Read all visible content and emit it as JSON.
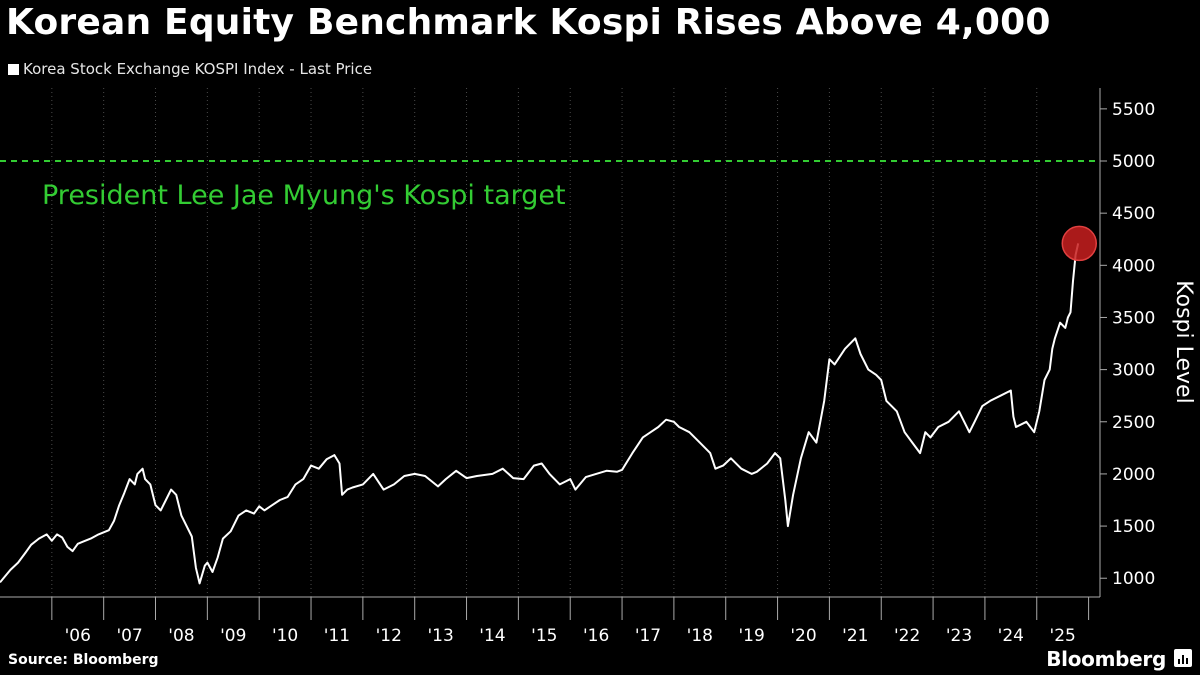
{
  "title": "Korean Equity Benchmark Kospi Rises Above 4,000",
  "legend": "Korea Stock Exchange KOSPI Index - Last Price",
  "source": "Source: Bloomberg",
  "brand": "Bloomberg",
  "colors": {
    "background": "#000000",
    "series": "#ffffff",
    "target": "#33cc33",
    "highlight": "#c81e1e"
  },
  "chart_data": {
    "type": "line",
    "title": "Korean Equity Benchmark Kospi Rises Above 4,000",
    "ylabel": "Kospi Level",
    "xlabel": "",
    "ylim": [
      820,
      5700
    ],
    "y_ticks": [
      1000,
      1500,
      2000,
      2500,
      3000,
      3500,
      4000,
      4500,
      5000,
      5500
    ],
    "x_ticks": [
      "'06",
      "'07",
      "'08",
      "'09",
      "'10",
      "'11",
      "'12",
      "'13",
      "'14",
      "'15",
      "'16",
      "'17",
      "'18",
      "'19",
      "'20",
      "'21",
      "'22",
      "'23",
      "'24",
      "'25"
    ],
    "grid": "vertical",
    "legend_position": "top-left",
    "annotation": {
      "text": "President Lee Jae Myung's Kospi target",
      "value": 5000,
      "style": "dashed"
    },
    "highlight_point": {
      "x": 2025.82,
      "y": 4210
    },
    "series": [
      {
        "name": "Korea Stock Exchange KOSPI Index - Last Price",
        "x": [
          2005.0,
          2005.1,
          2005.2,
          2005.35,
          2005.5,
          2005.6,
          2005.75,
          2005.9,
          2006.0,
          2006.1,
          2006.2,
          2006.3,
          2006.4,
          2006.5,
          2006.6,
          2006.75,
          2006.9,
          2007.0,
          2007.1,
          2007.2,
          2007.3,
          2007.4,
          2007.5,
          2007.6,
          2007.65,
          2007.75,
          2007.8,
          2007.9,
          2008.0,
          2008.1,
          2008.2,
          2008.3,
          2008.4,
          2008.5,
          2008.6,
          2008.7,
          2008.78,
          2008.85,
          2008.95,
          2009.0,
          2009.1,
          2009.2,
          2009.3,
          2009.45,
          2009.6,
          2009.75,
          2009.9,
          2010.0,
          2010.1,
          2010.25,
          2010.4,
          2010.55,
          2010.7,
          2010.85,
          2011.0,
          2011.15,
          2011.3,
          2011.45,
          2011.55,
          2011.6,
          2011.7,
          2011.8,
          2012.0,
          2012.2,
          2012.4,
          2012.6,
          2012.8,
          2013.0,
          2013.2,
          2013.45,
          2013.6,
          2013.8,
          2014.0,
          2014.2,
          2014.5,
          2014.7,
          2014.9,
          2015.1,
          2015.3,
          2015.45,
          2015.6,
          2015.8,
          2016.0,
          2016.1,
          2016.3,
          2016.5,
          2016.7,
          2016.9,
          2017.0,
          2017.2,
          2017.4,
          2017.55,
          2017.7,
          2017.85,
          2018.0,
          2018.1,
          2018.3,
          2018.5,
          2018.7,
          2018.8,
          2018.95,
          2019.1,
          2019.3,
          2019.5,
          2019.6,
          2019.8,
          2019.95,
          2020.05,
          2020.15,
          2020.2,
          2020.3,
          2020.45,
          2020.6,
          2020.75,
          2020.9,
          2021.0,
          2021.1,
          2021.3,
          2021.5,
          2021.6,
          2021.75,
          2021.9,
          2022.0,
          2022.1,
          2022.3,
          2022.45,
          2022.6,
          2022.75,
          2022.85,
          2022.95,
          2023.1,
          2023.3,
          2023.5,
          2023.7,
          2023.8,
          2023.95,
          2024.1,
          2024.3,
          2024.5,
          2024.55,
          2024.6,
          2024.8,
          2024.95,
          2025.05,
          2025.15,
          2025.25,
          2025.3,
          2025.35,
          2025.45,
          2025.55,
          2025.6,
          2025.65,
          2025.7,
          2025.75,
          2025.8
        ],
        "y": [
          960,
          1020,
          1080,
          1150,
          1250,
          1320,
          1380,
          1420,
          1360,
          1420,
          1390,
          1300,
          1260,
          1330,
          1350,
          1380,
          1420,
          1440,
          1460,
          1550,
          1700,
          1820,
          1950,
          1900,
          2000,
          2050,
          1950,
          1900,
          1700,
          1650,
          1750,
          1850,
          1800,
          1600,
          1500,
          1400,
          1100,
          950,
          1120,
          1150,
          1060,
          1200,
          1380,
          1450,
          1600,
          1650,
          1620,
          1690,
          1650,
          1700,
          1750,
          1780,
          1900,
          1950,
          2080,
          2050,
          2140,
          2180,
          2100,
          1800,
          1850,
          1870,
          1900,
          2000,
          1850,
          1900,
          1980,
          2000,
          1980,
          1880,
          1950,
          2030,
          1960,
          1980,
          2000,
          2050,
          1960,
          1950,
          2080,
          2100,
          2000,
          1900,
          1950,
          1850,
          1970,
          2000,
          2030,
          2020,
          2040,
          2200,
          2350,
          2400,
          2450,
          2520,
          2500,
          2450,
          2400,
          2300,
          2200,
          2050,
          2080,
          2150,
          2050,
          2000,
          2020,
          2100,
          2200,
          2150,
          1750,
          1500,
          1800,
          2150,
          2400,
          2300,
          2700,
          3100,
          3050,
          3200,
          3300,
          3150,
          3000,
          2950,
          2900,
          2700,
          2600,
          2400,
          2300,
          2200,
          2400,
          2350,
          2450,
          2500,
          2600,
          2400,
          2500,
          2650,
          2700,
          2750,
          2800,
          2550,
          2450,
          2500,
          2400,
          2600,
          2900,
          3000,
          3200,
          3300,
          3450,
          3400,
          3500,
          3550,
          3850,
          4100,
          4210
        ]
      }
    ]
  }
}
